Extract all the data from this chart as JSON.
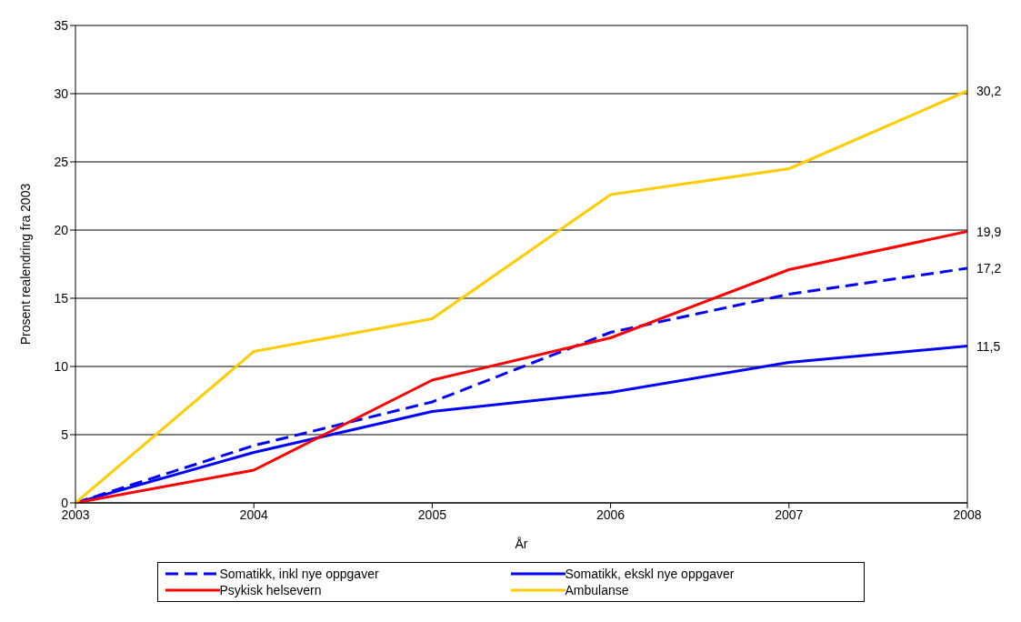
{
  "chart_data": {
    "type": "line",
    "xlabel": "År",
    "ylabel": "Prosent realendring fra 2003",
    "x": [
      2003,
      2004,
      2005,
      2006,
      2007,
      2008
    ],
    "xlim": [
      2003,
      2008
    ],
    "xticks": [
      2003,
      2004,
      2005,
      2006,
      2007,
      2008
    ],
    "ylim": [
      0,
      35
    ],
    "yticks": [
      0,
      5,
      10,
      15,
      20,
      25,
      30,
      35
    ],
    "grid": "y",
    "legend": "bottom",
    "marker": "none",
    "series": [
      {
        "name": "Somatikk, inkl nye oppgaver",
        "color": "#0000ff",
        "line_style": "dashed",
        "values": [
          0,
          4.2,
          7.4,
          12.5,
          15.3,
          17.2
        ],
        "value_labels": [
          null,
          null,
          null,
          null,
          null,
          "17,2"
        ]
      },
      {
        "name": "Somatikk, ekskl nye oppgaver",
        "color": "#0000ff",
        "line_style": "solid",
        "values": [
          0,
          3.7,
          6.7,
          8.1,
          10.3,
          11.5
        ],
        "value_labels": [
          null,
          null,
          null,
          null,
          null,
          "11,5"
        ]
      },
      {
        "name": "Psykisk helsevern",
        "color": "#ff0000",
        "line_style": "solid",
        "values": [
          0,
          2.4,
          9.0,
          12.1,
          17.1,
          19.9
        ],
        "value_labels": [
          null,
          null,
          null,
          null,
          null,
          "19,9"
        ]
      },
      {
        "name": "Ambulanse",
        "color": "#ffcc00",
        "line_style": "solid",
        "values": [
          0,
          11.1,
          13.5,
          22.6,
          24.5,
          30.2
        ],
        "value_labels": [
          null,
          null,
          null,
          null,
          null,
          "30,2"
        ]
      }
    ]
  }
}
